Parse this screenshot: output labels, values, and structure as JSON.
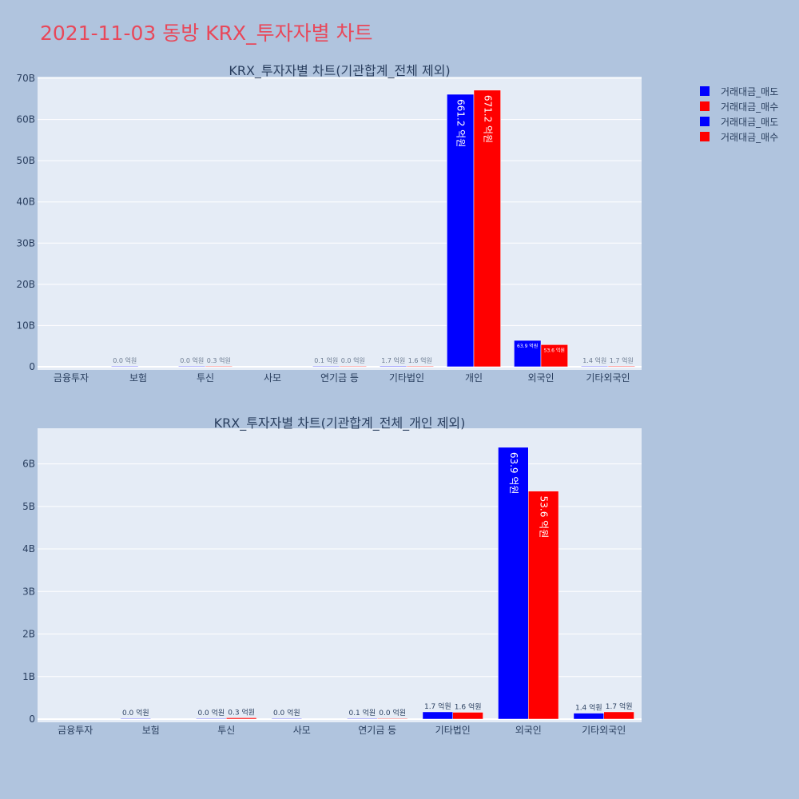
{
  "title": "2021-11-03 동방 KRX_투자자별 차트",
  "colors": {
    "page_bg": "#b0c4de",
    "plot_bg": "#e5ecf6",
    "grid": "#ffffff",
    "sell": "#0000ff",
    "buy": "#ff0000"
  },
  "legend": [
    "거래대금_매도",
    "거래대금_매수",
    "거래대금_매도",
    "거래대금_매수"
  ],
  "chart_data": [
    {
      "type": "bar",
      "title": "KRX_투자자별 차트(기관합계_전체 제외)",
      "categories": [
        "금융투자",
        "보험",
        "투신",
        "사모",
        "연기금 등",
        "기타법인",
        "개인",
        "외국인",
        "기타외국인"
      ],
      "yticks": [
        0,
        10,
        20,
        30,
        40,
        50,
        60,
        70
      ],
      "ytick_labels": [
        "0",
        "10B",
        "20B",
        "30B",
        "40B",
        "50B",
        "60B",
        "70B"
      ],
      "ylim": [
        0,
        70
      ],
      "yunit": "B",
      "legend_position": "top-right",
      "series": [
        {
          "name": "거래대금_매도",
          "color": "#0000ff",
          "values": [
            null,
            0.0,
            0.0,
            null,
            0.01,
            0.17,
            66.12,
            6.39,
            0.14
          ],
          "labels": [
            "",
            "0.0 억원",
            "0.0 억원",
            "",
            "0.1 억원",
            "1.7 억원",
            "661.2 억원",
            "63.9 억원",
            "1.4 억원"
          ]
        },
        {
          "name": "거래대금_매수",
          "color": "#ff0000",
          "values": [
            null,
            null,
            0.03,
            null,
            0.0,
            0.16,
            67.12,
            5.36,
            0.17
          ],
          "labels": [
            "",
            "",
            "0.3 억원",
            "",
            "0.0 억원",
            "1.6 억원",
            "671.2 억원",
            "53.6 억원",
            "1.7 억원"
          ]
        }
      ]
    },
    {
      "type": "bar",
      "title": "KRX_투자자별 차트(기관합계_전체_개인 제외)",
      "categories": [
        "금융투자",
        "보험",
        "투신",
        "사모",
        "연기금 등",
        "기타법인",
        "외국인",
        "기타외국인"
      ],
      "yticks": [
        0,
        1,
        2,
        3,
        4,
        5,
        6
      ],
      "ytick_labels": [
        "0",
        "1B",
        "2B",
        "3B",
        "4B",
        "5B",
        "6B"
      ],
      "ylim": [
        0,
        6.8
      ],
      "yunit": "B",
      "series": [
        {
          "name": "거래대금_매도",
          "color": "#0000ff",
          "values": [
            null,
            0.0,
            0.0,
            0.0,
            0.01,
            0.17,
            6.39,
            0.14
          ],
          "labels": [
            "",
            "0.0 억원",
            "0.0 억원",
            "0.0 억원",
            "0.1 억원",
            "1.7 억원",
            "63.9 억원",
            "1.4 억원"
          ]
        },
        {
          "name": "거래대금_매수",
          "color": "#ff0000",
          "values": [
            null,
            null,
            0.03,
            null,
            0.0,
            0.16,
            5.36,
            0.17
          ],
          "labels": [
            "",
            "",
            "0.3 억원",
            "",
            "0.0 억원",
            "1.6 억원",
            "53.6 억원",
            "1.7 억원"
          ]
        }
      ]
    }
  ]
}
